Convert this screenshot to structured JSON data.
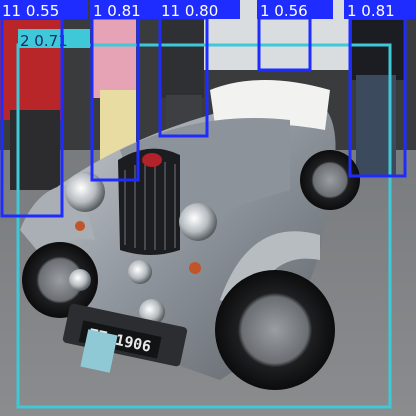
{
  "detections": [
    {
      "text": "11 0.55",
      "color": "#1f2cff",
      "text_color": "#ffffff"
    },
    {
      "text": "1 0.81",
      "color": "#1f2cff",
      "text_color": "#ffffff"
    },
    {
      "text": "11 0.80",
      "color": "#1f2cff",
      "text_color": "#ffffff"
    },
    {
      "text": "1 0.56",
      "color": "#1f2cff",
      "text_color": "#ffffff"
    },
    {
      "text": "1 0.81",
      "color": "#1f2cff",
      "text_color": "#ffffff"
    },
    {
      "text": "2 0.71",
      "color": "#3fc8d8",
      "text_color": "#1a2a6a"
    }
  ],
  "plate": {
    "text": "TT 1906"
  }
}
